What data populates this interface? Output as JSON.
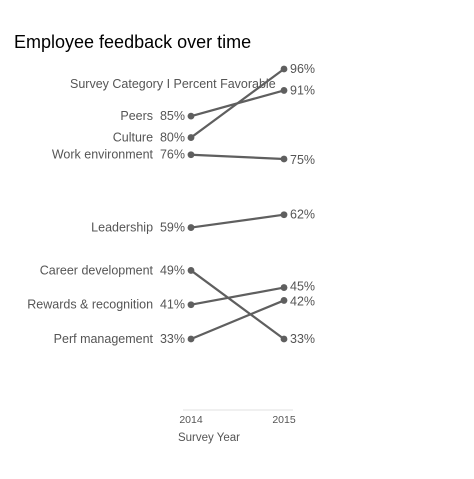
{
  "chart_data": {
    "type": "line",
    "title": "Employee feedback over time",
    "subtitle": "Survey Category I Percent Favorable",
    "xlabel": "Survey Year",
    "ylabel": "",
    "x": [
      "2014",
      "2015"
    ],
    "ylim": [
      25,
      100
    ],
    "grid": false,
    "legend": "none",
    "series": [
      {
        "name": "Peers",
        "values": [
          85,
          91
        ],
        "labels": [
          "Peers  85%",
          "91%"
        ]
      },
      {
        "name": "Culture",
        "values": [
          80,
          96
        ],
        "labels": [
          "Culture  80%",
          "96%"
        ]
      },
      {
        "name": "Work environment",
        "values": [
          76,
          75
        ],
        "labels": [
          "Work environment  76%",
          "75%"
        ]
      },
      {
        "name": "Leadership",
        "values": [
          59,
          62
        ],
        "labels": [
          "Leadership  59%",
          "62%"
        ]
      },
      {
        "name": "Career development",
        "values": [
          49,
          33
        ],
        "labels": [
          "Career development  49%",
          "33%"
        ]
      },
      {
        "name": "Rewards & recognition",
        "values": [
          41,
          45
        ],
        "labels": [
          "Rewards & recognition  41%",
          "45%"
        ]
      },
      {
        "name": "Perf management",
        "values": [
          33,
          42
        ],
        "labels": [
          "Perf management  33%",
          "42%"
        ]
      }
    ],
    "colors": {
      "line": "#5f5f5f",
      "label": "#555555",
      "axis_text": "#555555",
      "axis_line": "#dddddd"
    }
  }
}
